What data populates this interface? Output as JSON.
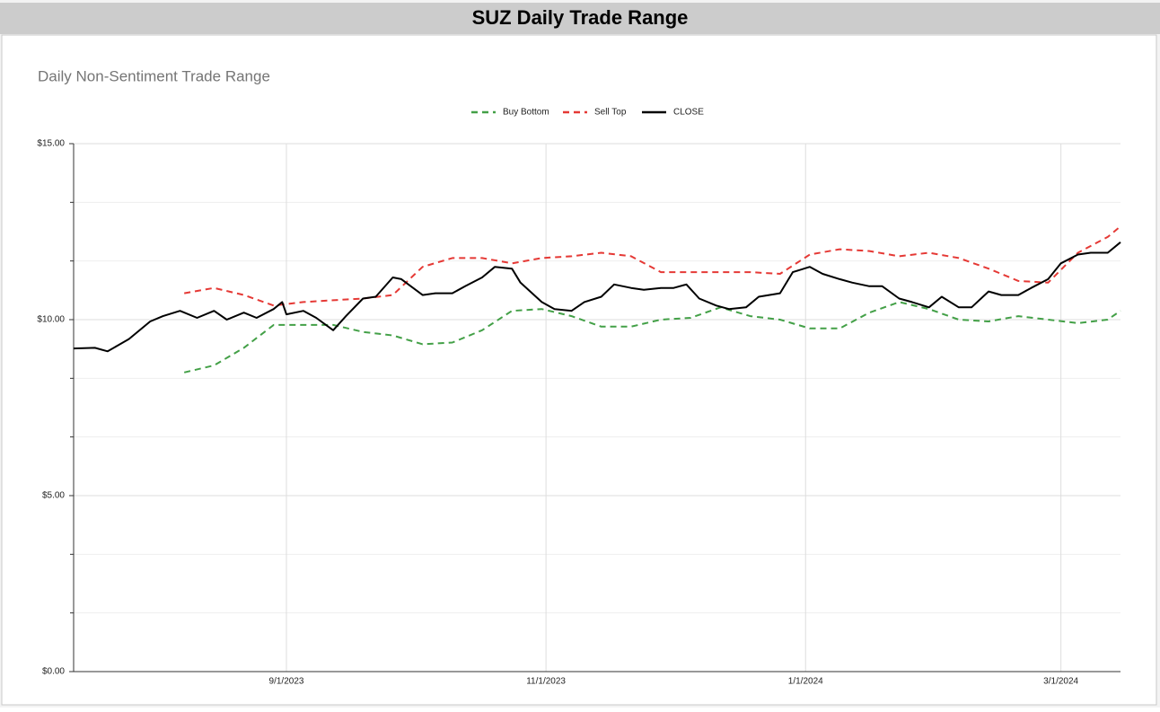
{
  "chart_data": {
    "type": "line",
    "title": "SUZ Daily Trade Range",
    "subtitle": "Daily Non-Sentiment Trade Range",
    "xlim": [
      "7/13/2023",
      "3/15/2024"
    ],
    "xticks": [
      "9/1/2023",
      "11/1/2023",
      "1/1/2024",
      "3/1/2024"
    ],
    "ylim": [
      0,
      15
    ],
    "yticks": [
      {
        "value": 0,
        "label": "$0.00"
      },
      {
        "value": 5,
        "label": "$5.00"
      },
      {
        "value": 10,
        "label": "$10.00"
      },
      {
        "value": 15,
        "label": "$15.00"
      }
    ],
    "minor_yticks": [
      1.667,
      3.333,
      6.667,
      8.333,
      11.667,
      13.333
    ],
    "grid": true,
    "legend": "top",
    "series": [
      {
        "name": "Buy Bottom",
        "color": "#43a047",
        "dashed": true,
        "x": [
          "8/8/2023",
          "8/15/2023",
          "8/22/2023",
          "8/29/2023",
          "9/5/2023",
          "9/12/2023",
          "9/19/2023",
          "9/26/2023",
          "10/3/2023",
          "10/10/2023",
          "10/17/2023",
          "10/24/2023",
          "10/31/2023",
          "11/7/2023",
          "11/14/2023",
          "11/21/2023",
          "11/28/2023",
          "12/5/2023",
          "12/12/2023",
          "12/19/2023",
          "12/26/2023",
          "1/2/2024",
          "1/9/2024",
          "1/16/2024",
          "1/23/2024",
          "1/30/2024",
          "2/6/2024",
          "2/13/2024",
          "2/20/2024",
          "2/27/2024",
          "3/5/2024",
          "3/12/2024",
          "3/15/2024"
        ],
        "values": [
          8.5,
          8.7,
          9.2,
          9.85,
          9.85,
          9.85,
          9.65,
          9.55,
          9.3,
          9.35,
          9.7,
          10.25,
          10.3,
          10.1,
          9.8,
          9.8,
          10.0,
          10.05,
          10.35,
          10.1,
          10.0,
          9.75,
          9.75,
          10.2,
          10.5,
          10.3,
          10.0,
          9.95,
          10.1,
          10.0,
          9.9,
          10.0,
          10.25
        ]
      },
      {
        "name": "Sell Top",
        "color": "#e53935",
        "dashed": true,
        "x": [
          "8/8/2023",
          "8/15/2023",
          "8/22/2023",
          "8/29/2023",
          "9/5/2023",
          "9/12/2023",
          "9/19/2023",
          "9/26/2023",
          "10/3/2023",
          "10/10/2023",
          "10/17/2023",
          "10/24/2023",
          "10/31/2023",
          "11/7/2023",
          "11/14/2023",
          "11/21/2023",
          "11/28/2023",
          "12/5/2023",
          "12/12/2023",
          "12/19/2023",
          "12/26/2023",
          "1/2/2024",
          "1/9/2024",
          "1/16/2024",
          "1/23/2024",
          "1/30/2024",
          "2/6/2024",
          "2/13/2024",
          "2/20/2024",
          "2/27/2024",
          "3/5/2024",
          "3/12/2024",
          "3/15/2024"
        ],
        "values": [
          10.75,
          10.9,
          10.7,
          10.4,
          10.5,
          10.55,
          10.6,
          10.7,
          11.5,
          11.75,
          11.75,
          11.6,
          11.75,
          11.8,
          11.9,
          11.8,
          11.35,
          11.35,
          11.35,
          11.35,
          11.3,
          11.85,
          12.0,
          11.95,
          11.8,
          11.9,
          11.75,
          11.45,
          11.1,
          11.05,
          11.9,
          12.35,
          12.65
        ]
      },
      {
        "name": "CLOSE",
        "color": "#000000",
        "dashed": false,
        "x": [
          "7/13/2023",
          "7/18/2023",
          "7/21/2023",
          "7/26/2023",
          "7/31/2023",
          "8/3/2023",
          "8/7/2023",
          "8/11/2023",
          "8/15/2023",
          "8/18/2023",
          "8/22/2023",
          "8/25/2023",
          "8/29/2023",
          "8/31/2023",
          "9/1/2023",
          "9/5/2023",
          "9/8/2023",
          "9/12/2023",
          "9/15/2023",
          "9/19/2023",
          "9/22/2023",
          "9/26/2023",
          "9/28/2023",
          "10/3/2023",
          "10/6/2023",
          "10/10/2023",
          "10/13/2023",
          "10/17/2023",
          "10/20/2023",
          "10/24/2023",
          "10/26/2023",
          "10/31/2023",
          "11/3/2023",
          "11/7/2023",
          "11/10/2023",
          "11/14/2023",
          "11/17/2023",
          "11/21/2023",
          "11/24/2023",
          "11/28/2023",
          "12/1/2023",
          "12/4/2023",
          "12/7/2023",
          "12/11/2023",
          "12/14/2023",
          "12/18/2023",
          "12/21/2023",
          "12/26/2023",
          "12/29/2023",
          "1/2/2024",
          "1/5/2024",
          "1/9/2024",
          "1/12/2024",
          "1/16/2024",
          "1/19/2024",
          "1/23/2024",
          "1/26/2024",
          "1/30/2024",
          "2/2/2024",
          "2/6/2024",
          "2/9/2024",
          "2/13/2024",
          "2/16/2024",
          "2/20/2024",
          "2/23/2024",
          "2/27/2024",
          "3/1/2024",
          "3/5/2024",
          "3/8/2024",
          "3/12/2024",
          "3/15/2024"
        ],
        "values": [
          9.18,
          9.2,
          9.1,
          9.45,
          9.95,
          10.1,
          10.25,
          10.05,
          10.25,
          10.0,
          10.2,
          10.05,
          10.3,
          10.5,
          10.15,
          10.25,
          10.05,
          9.7,
          10.1,
          10.6,
          10.65,
          11.2,
          11.15,
          10.7,
          10.75,
          10.75,
          10.95,
          11.2,
          11.5,
          11.45,
          11.05,
          10.5,
          10.3,
          10.25,
          10.5,
          10.65,
          11.0,
          10.9,
          10.85,
          10.9,
          10.9,
          11.0,
          10.6,
          10.4,
          10.3,
          10.35,
          10.65,
          10.75,
          11.35,
          11.5,
          11.3,
          11.15,
          11.05,
          10.95,
          10.95,
          10.6,
          10.5,
          10.35,
          10.65,
          10.35,
          10.35,
          10.8,
          10.7,
          10.7,
          10.9,
          11.15,
          11.6,
          11.85,
          11.9,
          11.9,
          12.2
        ]
      }
    ]
  }
}
